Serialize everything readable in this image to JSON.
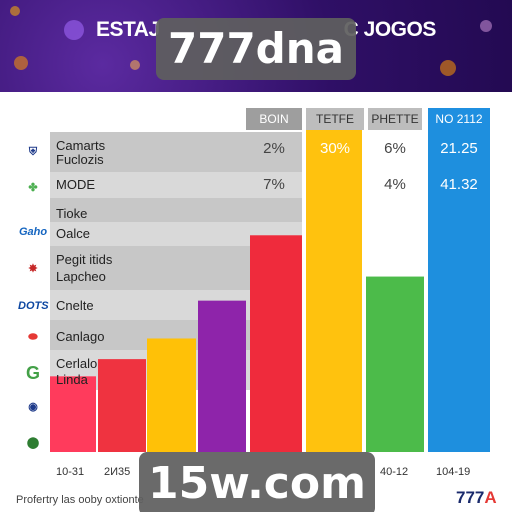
{
  "header": {
    "title_left": "ESTAJ",
    "title_right": "C JOGOS"
  },
  "overlays": {
    "top": "777dna",
    "bottom": "15w.com"
  },
  "columns": [
    {
      "label": "BOIN",
      "bg": "#9e9e9e",
      "fg": "#ffffff"
    },
    {
      "label": "TETFE",
      "bg": "#bdbdbd",
      "fg": "#333333"
    },
    {
      "label": "PHETTE",
      "bg": "#bdbdbd",
      "fg": "#333333"
    },
    {
      "label": "NO 2112",
      "bg": "#1f8fe0",
      "fg": "#ffffff"
    }
  ],
  "categories": [
    "Camarts",
    "Fuclozis",
    "MODE",
    "Tioke",
    "Oalce",
    "Pegit itids",
    "Lapcheo",
    "Cnelte",
    "Canlago",
    "Cerlalo",
    "Linda"
  ],
  "logos": [
    {
      "name": "shield-logo-icon",
      "color": "#1e3a8a"
    },
    {
      "name": "mascot-logo-icon",
      "color": "#4caf50"
    },
    {
      "name": "script-logo-icon",
      "color": "#1565c0",
      "text": "Gaho"
    },
    {
      "name": "crest-logo-icon",
      "color": "#c62828"
    },
    {
      "name": "wordmark-logo-icon",
      "color": "#0d47a1",
      "text": "DOTS"
    },
    {
      "name": "badge-logo-icon",
      "color": "#e53935"
    },
    {
      "name": "swoosh-logo-icon",
      "color": "#43a047",
      "text": "G"
    },
    {
      "name": "globe-logo-icon",
      "color": "#1e3a8a"
    },
    {
      "name": "ball-logo-icon",
      "color": "#2e7d32"
    }
  ],
  "value_rows": [
    [
      "2%",
      "30%",
      "6%",
      "21.25"
    ],
    [
      "7%",
      "",
      "4%",
      "41.32"
    ]
  ],
  "x_ticks": [
    "10-31",
    "2И35",
    "40-12",
    "104-19"
  ],
  "footer": {
    "text": "Profertry las ooby oxtionte",
    "logo_main": "777",
    "logo_accent": "A"
  },
  "chart_data": {
    "type": "bar",
    "categories": [
      "",
      "",
      "",
      "",
      "",
      "",
      "",
      ""
    ],
    "values": [
      22,
      27,
      33,
      44,
      63,
      100,
      51,
      100
    ],
    "ylim": [
      0,
      100
    ],
    "colors": [
      "#ff3b5c",
      "#ef3340",
      "#ffc107",
      "#8e24aa",
      "#ef2b3c",
      "#ffc20e",
      "#4cbb4a",
      "#1e8fde"
    ]
  }
}
